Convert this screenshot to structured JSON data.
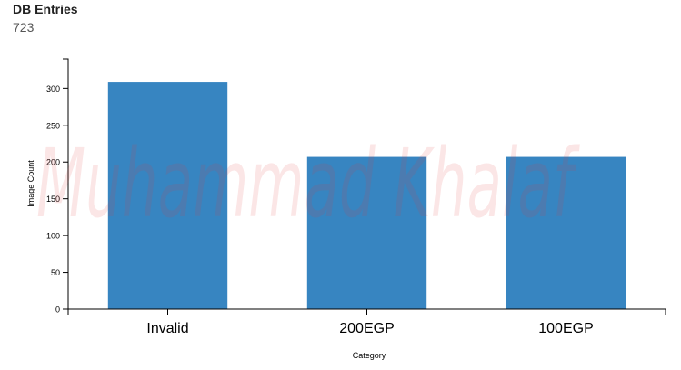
{
  "header": {
    "title": "DB Entries",
    "count": "723"
  },
  "watermark": {
    "text": "Muhammad Khalaf",
    "fill_color": "#e0403e",
    "opacity": 0.13
  },
  "chart_data": {
    "type": "bar",
    "categories": [
      "Invalid",
      "200EGP",
      "100EGP"
    ],
    "values": [
      309,
      207,
      207
    ],
    "xlabel": "Category",
    "ylabel": "Image Count",
    "ylim": [
      0,
      340
    ],
    "yticks": [
      0,
      50,
      100,
      150,
      200,
      250,
      300
    ],
    "grid": false,
    "bar_color": "#3785c1"
  }
}
